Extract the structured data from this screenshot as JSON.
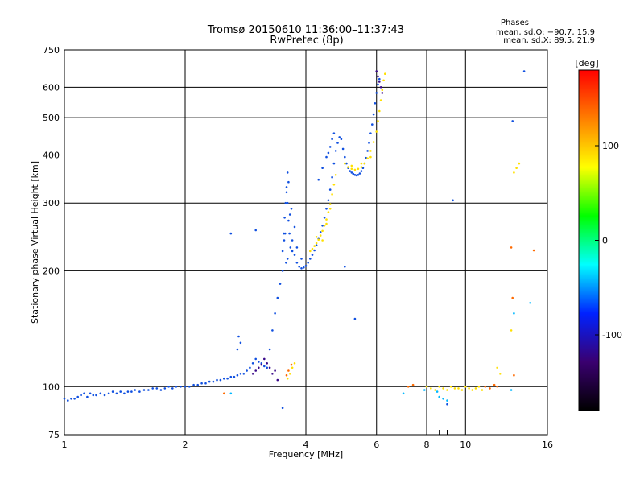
{
  "chart_data": {
    "type": "scatter",
    "title": "Tromsø 20150610 11:36:00–11:37:43",
    "subtitle": "RwPretec (8p)",
    "xlabel": "Frequency [MHz]",
    "ylabel": "Stationary phase Virtual Height [km]",
    "x_scale": "log",
    "y_scale": "log",
    "xlim": [
      1,
      16
    ],
    "ylim": [
      75,
      750
    ],
    "x_ticks": [
      1,
      2,
      4,
      6,
      8,
      10,
      16
    ],
    "y_ticks": [
      75,
      100,
      200,
      300,
      400,
      500,
      600,
      750
    ],
    "grid": true,
    "phases": {
      "heading": "Phases",
      "o_line": "mean, sd,O: −90.7, 15.9",
      "x_line": "mean, sd,X:  89.5, 21.9"
    },
    "colorbar": {
      "label": "[deg]",
      "range": [
        -180,
        180
      ],
      "ticks": [
        100,
        0,
        -100
      ],
      "colors": [
        "#000000",
        "#3a0070",
        "#0022ff",
        "#00ffff",
        "#00ff00",
        "#ffff00",
        "#ff7f00",
        "#ff0000"
      ]
    },
    "series": [
      {
        "color": "#1050e0",
        "points": [
          [
            1.0,
            93
          ],
          [
            1.02,
            92
          ],
          [
            1.04,
            93
          ],
          [
            1.06,
            93
          ],
          [
            1.08,
            94
          ],
          [
            1.1,
            95
          ],
          [
            1.12,
            96
          ],
          [
            1.14,
            94
          ],
          [
            1.16,
            96
          ],
          [
            1.18,
            95
          ],
          [
            1.2,
            95
          ],
          [
            1.23,
            96
          ],
          [
            1.26,
            95
          ],
          [
            1.29,
            96
          ],
          [
            1.32,
            97
          ],
          [
            1.35,
            96
          ],
          [
            1.38,
            97
          ],
          [
            1.41,
            96
          ],
          [
            1.44,
            97
          ],
          [
            1.47,
            97
          ],
          [
            1.5,
            98
          ],
          [
            1.54,
            97
          ],
          [
            1.58,
            98
          ],
          [
            1.62,
            98
          ],
          [
            1.66,
            99
          ],
          [
            1.7,
            99
          ],
          [
            1.74,
            98
          ],
          [
            1.78,
            99
          ],
          [
            1.82,
            100
          ],
          [
            1.86,
            99
          ],
          [
            1.9,
            100
          ],
          [
            1.95,
            100
          ],
          [
            2.0,
            100
          ],
          [
            2.05,
            100
          ],
          [
            2.1,
            101
          ],
          [
            2.15,
            101
          ],
          [
            2.2,
            102
          ],
          [
            2.25,
            102
          ],
          [
            2.3,
            103
          ],
          [
            2.35,
            103
          ],
          [
            2.4,
            104
          ],
          [
            2.45,
            104
          ],
          [
            2.5,
            105
          ],
          [
            2.55,
            105
          ],
          [
            2.6,
            106
          ],
          [
            2.65,
            106
          ],
          [
            2.7,
            107
          ],
          [
            2.75,
            108
          ],
          [
            2.8,
            108
          ],
          [
            2.85,
            110
          ],
          [
            2.9,
            112
          ],
          [
            2.95,
            115
          ],
          [
            3.0,
            118
          ],
          [
            3.05,
            116
          ],
          [
            3.1,
            115
          ],
          [
            3.15,
            113
          ],
          [
            3.2,
            112
          ],
          [
            3.25,
            125
          ],
          [
            3.3,
            140
          ],
          [
            3.35,
            155
          ],
          [
            3.4,
            170
          ],
          [
            3.45,
            185
          ],
          [
            3.5,
            200
          ],
          [
            3.5,
            225
          ],
          [
            3.52,
            250
          ],
          [
            3.54,
            275
          ],
          [
            3.56,
            300
          ],
          [
            3.58,
            330
          ],
          [
            3.6,
            360
          ],
          [
            3.65,
            280
          ],
          [
            3.7,
            240
          ],
          [
            3.75,
            220
          ],
          [
            3.8,
            210
          ],
          [
            3.85,
            205
          ],
          [
            3.9,
            203
          ],
          [
            3.95,
            204
          ],
          [
            4.0,
            206
          ],
          [
            4.05,
            210
          ],
          [
            4.1,
            215
          ],
          [
            4.15,
            220
          ],
          [
            4.2,
            226
          ],
          [
            4.25,
            233
          ],
          [
            4.3,
            242
          ],
          [
            4.35,
            252
          ],
          [
            4.4,
            262
          ],
          [
            4.45,
            275
          ],
          [
            4.5,
            290
          ],
          [
            4.55,
            305
          ],
          [
            4.6,
            325
          ],
          [
            4.65,
            350
          ],
          [
            4.7,
            380
          ],
          [
            4.75,
            410
          ],
          [
            4.8,
            430
          ],
          [
            4.85,
            445
          ],
          [
            4.9,
            440
          ],
          [
            4.95,
            415
          ],
          [
            5.0,
            395
          ],
          [
            5.05,
            380
          ],
          [
            5.1,
            370
          ],
          [
            5.15,
            363
          ],
          [
            5.2,
            360
          ],
          [
            5.25,
            357
          ],
          [
            5.3,
            355
          ],
          [
            5.35,
            354
          ],
          [
            5.4,
            355
          ],
          [
            5.45,
            358
          ],
          [
            5.5,
            363
          ],
          [
            5.55,
            370
          ],
          [
            5.6,
            380
          ],
          [
            5.65,
            393
          ],
          [
            5.7,
            410
          ],
          [
            5.75,
            430
          ],
          [
            5.8,
            455
          ],
          [
            5.85,
            480
          ],
          [
            5.9,
            510
          ],
          [
            5.95,
            545
          ],
          [
            6.0,
            580
          ],
          [
            6.05,
            610
          ],
          [
            6.1,
            630
          ],
          [
            3.6,
            300
          ],
          [
            3.62,
            270
          ],
          [
            3.64,
            250
          ],
          [
            3.66,
            230
          ],
          [
            3.55,
            250
          ],
          [
            3.53,
            240
          ],
          [
            3.57,
            210
          ],
          [
            3.6,
            215
          ],
          [
            3.7,
            225
          ],
          [
            3.8,
            230
          ],
          [
            3.9,
            215
          ],
          [
            3.75,
            260
          ],
          [
            3.68,
            290
          ],
          [
            3.58,
            320
          ],
          [
            3.62,
            340
          ],
          [
            4.5,
            395
          ],
          [
            4.55,
            405
          ],
          [
            4.6,
            420
          ],
          [
            4.4,
            370
          ],
          [
            4.3,
            345
          ],
          [
            4.65,
            440
          ],
          [
            4.7,
            455
          ],
          [
            2.7,
            125
          ],
          [
            2.75,
            130
          ],
          [
            2.72,
            135
          ],
          [
            2.6,
            250
          ],
          [
            3.0,
            255
          ],
          [
            5.0,
            205
          ],
          [
            5.3,
            150
          ],
          [
            3.5,
            88
          ],
          [
            9.0,
            90
          ],
          [
            9.3,
            305
          ],
          [
            13.1,
            490
          ],
          [
            14.0,
            660
          ]
        ]
      },
      {
        "color": "#3a0a8a",
        "points": [
          [
            2.95,
            108
          ],
          [
            3.0,
            110
          ],
          [
            3.05,
            112
          ],
          [
            3.1,
            114
          ],
          [
            3.15,
            118
          ],
          [
            3.2,
            115
          ],
          [
            3.25,
            112
          ],
          [
            3.3,
            108
          ],
          [
            3.35,
            110
          ],
          [
            3.4,
            104
          ],
          [
            6.0,
            660
          ],
          [
            6.05,
            640
          ],
          [
            6.1,
            620
          ],
          [
            6.15,
            600
          ],
          [
            6.2,
            580
          ]
        ]
      },
      {
        "color": "#ffe000",
        "points": [
          [
            3.6,
            105
          ],
          [
            3.65,
            108
          ],
          [
            3.7,
            112
          ],
          [
            3.75,
            115
          ],
          [
            4.1,
            225
          ],
          [
            4.15,
            228
          ],
          [
            4.2,
            232
          ],
          [
            4.25,
            236
          ],
          [
            4.3,
            241
          ],
          [
            4.35,
            247
          ],
          [
            4.4,
            254
          ],
          [
            4.45,
            262
          ],
          [
            4.5,
            272
          ],
          [
            4.55,
            284
          ],
          [
            4.6,
            298
          ],
          [
            4.65,
            316
          ],
          [
            4.7,
            335
          ],
          [
            4.75,
            355
          ],
          [
            5.0,
            380
          ],
          [
            5.1,
            372
          ],
          [
            5.2,
            368
          ],
          [
            5.3,
            366
          ],
          [
            5.4,
            368
          ],
          [
            5.5,
            372
          ],
          [
            5.6,
            380
          ],
          [
            5.7,
            392
          ],
          [
            5.8,
            410
          ],
          [
            5.9,
            432
          ],
          [
            6.0,
            460
          ],
          [
            6.05,
            490
          ],
          [
            6.1,
            520
          ],
          [
            6.15,
            555
          ],
          [
            6.2,
            590
          ],
          [
            6.25,
            625
          ],
          [
            6.3,
            650
          ],
          [
            4.25,
            245
          ],
          [
            4.4,
            240
          ],
          [
            4.5,
            265
          ],
          [
            4.6,
            290
          ],
          [
            5.2,
            375
          ],
          [
            5.5,
            380
          ],
          [
            5.8,
            395
          ],
          [
            8.0,
            100
          ],
          [
            8.2,
            99
          ],
          [
            8.4,
            98
          ],
          [
            8.6,
            100
          ],
          [
            8.8,
            99
          ],
          [
            9.0,
            98
          ],
          [
            9.2,
            100
          ],
          [
            9.4,
            99
          ],
          [
            9.6,
            99
          ],
          [
            9.8,
            98
          ],
          [
            10.0,
            100
          ],
          [
            10.2,
            99
          ],
          [
            10.4,
            98
          ],
          [
            10.6,
            99
          ],
          [
            10.8,
            100
          ],
          [
            11.0,
            98
          ],
          [
            13.0,
            140
          ],
          [
            13.2,
            360
          ],
          [
            13.4,
            370
          ],
          [
            13.6,
            380
          ],
          [
            12.0,
            112
          ],
          [
            12.2,
            108
          ]
        ]
      },
      {
        "color": "#ff6a00",
        "points": [
          [
            2.5,
            96
          ],
          [
            3.58,
            107
          ],
          [
            3.62,
            110
          ],
          [
            3.68,
            114
          ],
          [
            7.2,
            100
          ],
          [
            7.4,
            101
          ],
          [
            11.2,
            100
          ],
          [
            11.5,
            99
          ],
          [
            11.8,
            101
          ],
          [
            12.0,
            100
          ],
          [
            13.0,
            230
          ],
          [
            13.1,
            170
          ],
          [
            13.2,
            107
          ],
          [
            14.8,
            226
          ]
        ]
      },
      {
        "color": "#00b8ff",
        "points": [
          [
            2.6,
            96
          ],
          [
            7.0,
            96
          ],
          [
            7.9,
            98
          ],
          [
            8.5,
            97
          ],
          [
            8.6,
            94
          ],
          [
            8.8,
            93
          ],
          [
            9.0,
            92
          ],
          [
            13.0,
            98
          ],
          [
            13.2,
            155
          ],
          [
            14.5,
            165
          ]
        ]
      }
    ]
  }
}
